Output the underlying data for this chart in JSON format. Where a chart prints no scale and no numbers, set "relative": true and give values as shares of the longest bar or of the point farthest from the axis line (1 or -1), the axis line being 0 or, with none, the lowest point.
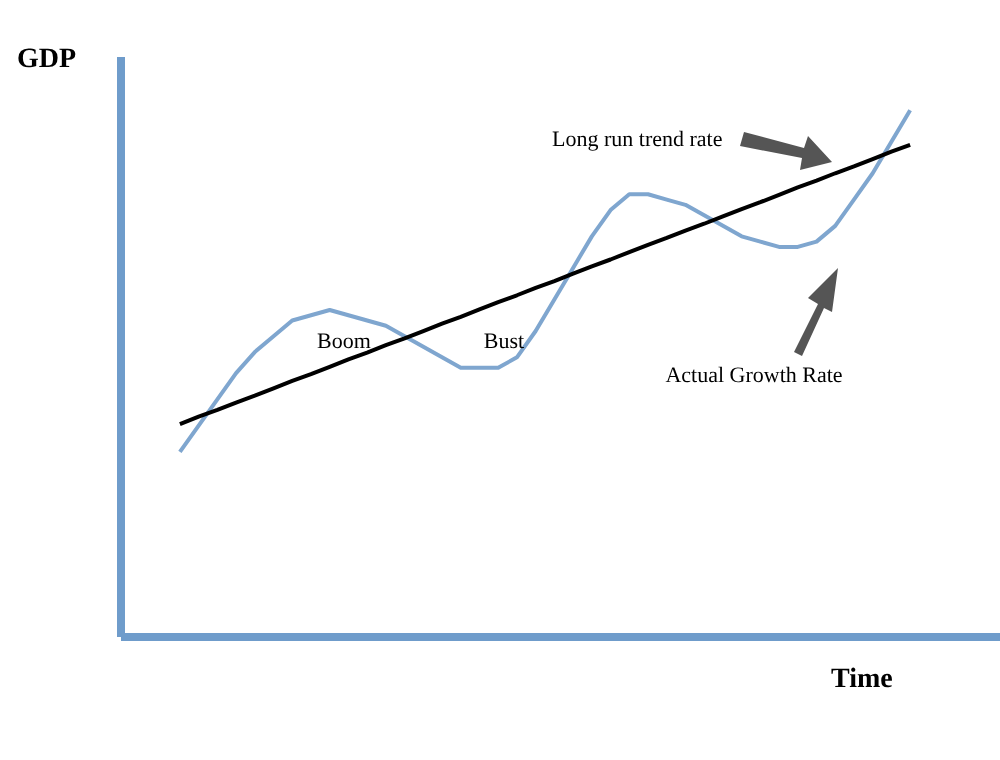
{
  "chart_data": {
    "type": "line",
    "relative": true,
    "xlabel": "Time",
    "ylabel": "GDP",
    "categories": [
      null,
      null,
      null,
      null,
      null,
      null,
      null,
      null,
      null,
      null,
      null,
      null,
      null,
      null,
      null,
      null,
      null,
      null,
      null,
      null,
      null,
      null,
      null,
      null,
      null,
      null,
      null,
      null,
      null,
      null,
      null,
      null,
      null,
      null,
      null,
      null,
      null,
      null,
      null,
      null
    ],
    "series": [
      {
        "color": "#7fa6cf",
        "values": [
          0.35,
          0.4,
          0.45,
          0.5,
          0.54,
          0.57,
          0.6,
          0.61,
          0.62,
          0.61,
          0.6,
          0.59,
          0.57,
          0.55,
          0.53,
          0.51,
          0.51,
          0.51,
          0.53,
          0.58,
          0.64,
          0.7,
          0.76,
          0.81,
          0.84,
          0.84,
          0.83,
          0.82,
          0.8,
          0.78,
          0.76,
          0.75,
          0.74,
          0.74,
          0.75,
          0.78,
          0.83,
          0.88,
          0.94,
          1.0
        ]
      },
      {
        "type": "line",
        "color": "#000000",
        "values": [
          0.403,
          0.417,
          0.43,
          0.444,
          0.457,
          0.471,
          0.485,
          0.498,
          0.512,
          0.526,
          0.539,
          0.553,
          0.566,
          0.58,
          0.594,
          0.607,
          0.621,
          0.635,
          0.648,
          0.662,
          0.675,
          0.689,
          0.703,
          0.716,
          0.73,
          0.744,
          0.757,
          0.771,
          0.784,
          0.798,
          0.812,
          0.825,
          0.839,
          0.853,
          0.866,
          0.88,
          0.893,
          0.907,
          0.921,
          0.934
        ]
      }
    ],
    "annotations": [
      "Long run trend rate",
      "Actual Growth Rate",
      "Boom",
      "Bust"
    ]
  }
}
